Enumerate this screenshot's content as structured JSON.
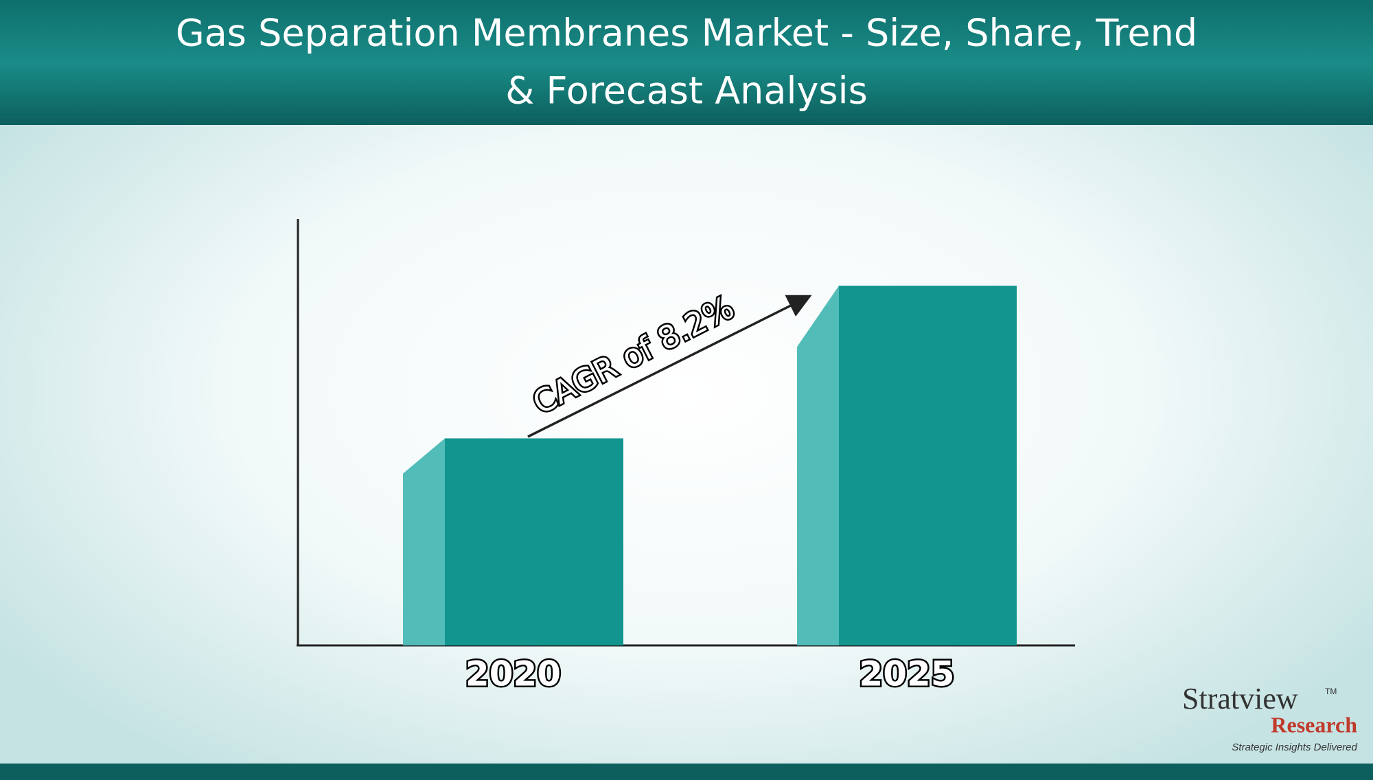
{
  "chart_data": {
    "type": "bar3d",
    "title": "Gas Separation Membranes Market - Size, Share, Trend",
    "subtitle": "& Forecast Analysis",
    "categories": [
      "2020",
      "2025"
    ],
    "values": [
      236,
      410
    ],
    "ylim": [
      0,
      486
    ],
    "color": "#12958f",
    "side_color": "#52bcb9",
    "annotation": "CAGR of 8.2%"
  },
  "logo": {
    "name": "Stratview",
    "trademark": "TM",
    "subname": "Research",
    "tagline": "Strategic Insights Delivered"
  }
}
